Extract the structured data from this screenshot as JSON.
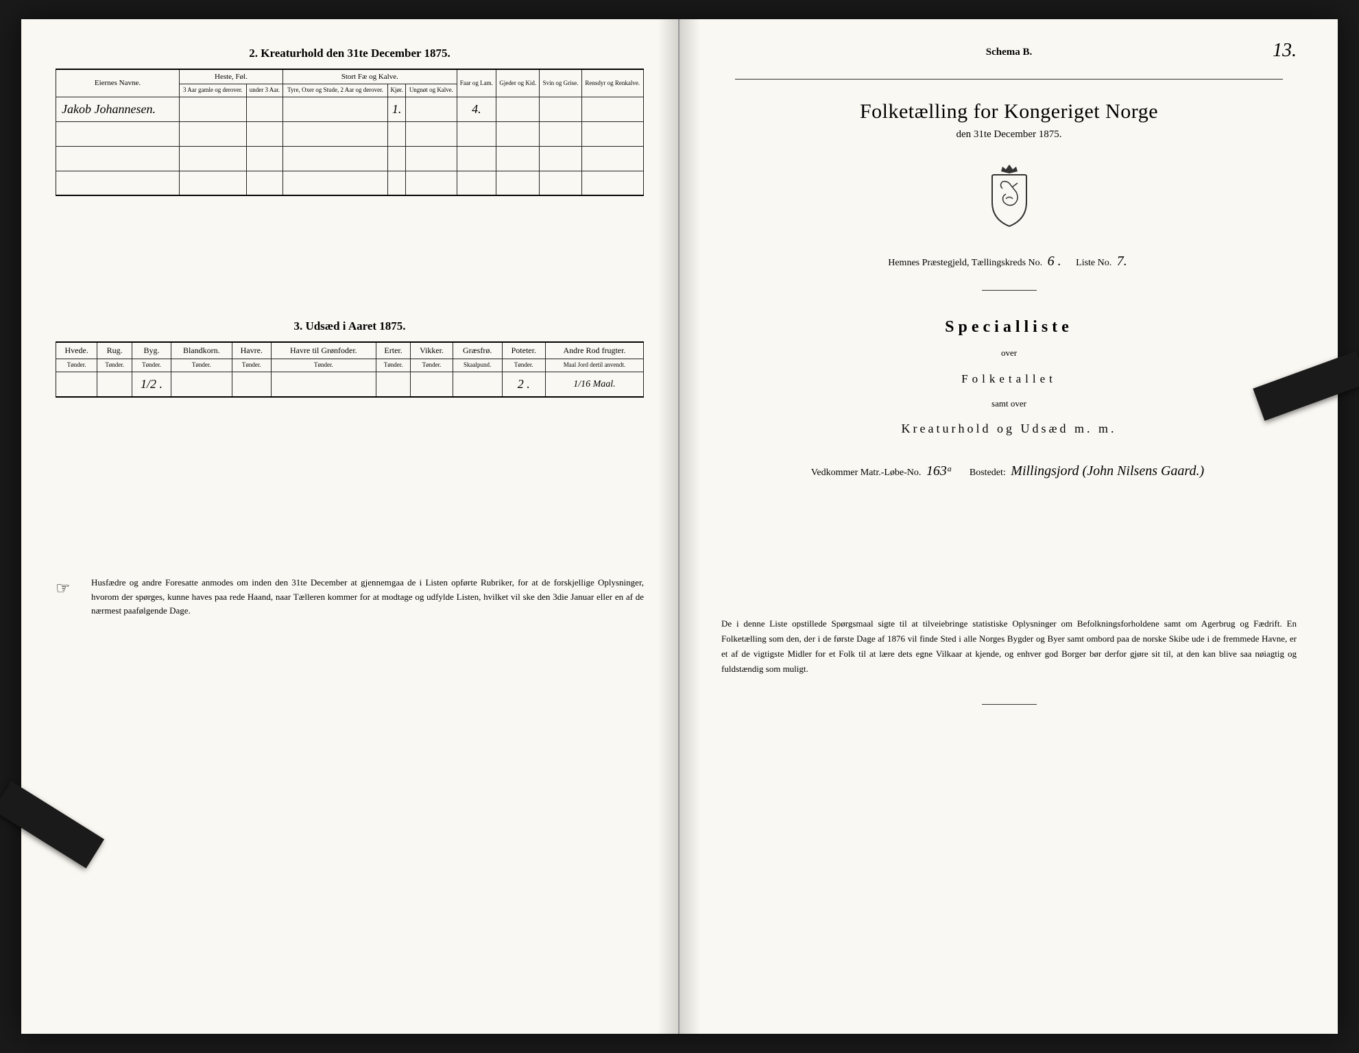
{
  "left": {
    "section2_title": "2.  Kreaturhold den 31te December 1875.",
    "table2": {
      "header_owner": "Eiernes Navne.",
      "group_heste": "Heste, Føl.",
      "group_storfe": "Stort Fæ og Kalve.",
      "col_heste_3aar": "3 Aar gamle og derover.",
      "col_heste_under3": "under 3 Aar.",
      "col_tyre": "Tyre, Oxer og Stude, 2 Aar og derover.",
      "col_kjor": "Kjør.",
      "col_ungnot": "Ungnøt og Kalve.",
      "col_faar": "Faar og Lam.",
      "col_gjeder": "Gjeder og Kid.",
      "col_svin": "Svin og Grise.",
      "col_rensdyr": "Rensdyr og Renkalve.",
      "row1_owner": "Jakob Johannesen.",
      "row1_kjor": "1.",
      "row1_faar": "4."
    },
    "section3_title": "3.  Udsæd i Aaret 1875.",
    "table3": {
      "cols": [
        {
          "name": "Hvede.",
          "unit": "Tønder."
        },
        {
          "name": "Rug.",
          "unit": "Tønder."
        },
        {
          "name": "Byg.",
          "unit": "Tønder."
        },
        {
          "name": "Blandkorn.",
          "unit": "Tønder."
        },
        {
          "name": "Havre.",
          "unit": "Tønder."
        },
        {
          "name": "Havre til Grønfoder.",
          "unit": "Tønder."
        },
        {
          "name": "Erter.",
          "unit": "Tønder."
        },
        {
          "name": "Vikker.",
          "unit": "Tønder."
        },
        {
          "name": "Græsfrø.",
          "unit": "Skaalpund."
        },
        {
          "name": "Poteter.",
          "unit": "Tønder."
        },
        {
          "name": "Andre Rod frugter.",
          "unit": "Maal Jord dertil anvendt."
        }
      ],
      "row_byg": "1/2 .",
      "row_poteter": "2 .",
      "row_andre": "1/16 Maal."
    },
    "notice": "Husfædre og andre Foresatte anmodes om inden den 31te December at gjennemgaa de i Listen opførte Rubriker, for at de forskjellige Oplysninger, hvorom der spørges, kunne haves paa rede Haand, naar Tælleren kommer for at modtage og udfylde Listen, hvilket vil ske den 3die Januar eller en af de nærmest paafølgende Dage."
  },
  "right": {
    "page_number": "13.",
    "schema": "Schema B.",
    "title": "Folketælling for Kongeriget Norge",
    "subdate": "den 31te December 1875.",
    "prestegjeld_label": "Hemnes Præstegjeld,  Tællingskreds No.",
    "kreds_no": "6 .",
    "liste_label": "Liste No.",
    "liste_no": "7.",
    "specialliste": "Specialliste",
    "over": "over",
    "folketallet": "Folketallet",
    "samt_over": "samt over",
    "kreatur": "Kreaturhold og Udsæd m. m.",
    "vedkommer_label": "Vedkommer Matr.-Løbe-No.",
    "matr_no": "163ᵃ",
    "bostedet_label": "Bostedet:",
    "bostedet": "Millingsjord (John Nilsens Gaard.)",
    "notice": "De i denne Liste opstillede Spørgsmaal sigte til at tilveiebringe statistiske Oplysninger om Befolkningsforholdene samt om Agerbrug og Fædrift.  En Folketælling som den, der i de første Dage af 1876 vil finde Sted i alle Norges Bygder og Byer samt ombord paa de norske Skibe ude i de fremmede Havne, er et af de vigtigste Midler for et Folk til at lære dets egne Vilkaar at kjende, og enhver god Borger bør derfor gjøre sit til, at den kan blive saa nøiagtig og fuldstændig som muligt."
  },
  "colors": {
    "paper": "#faf8f2",
    "ink": "#1d1d1d",
    "border": "#222222"
  }
}
